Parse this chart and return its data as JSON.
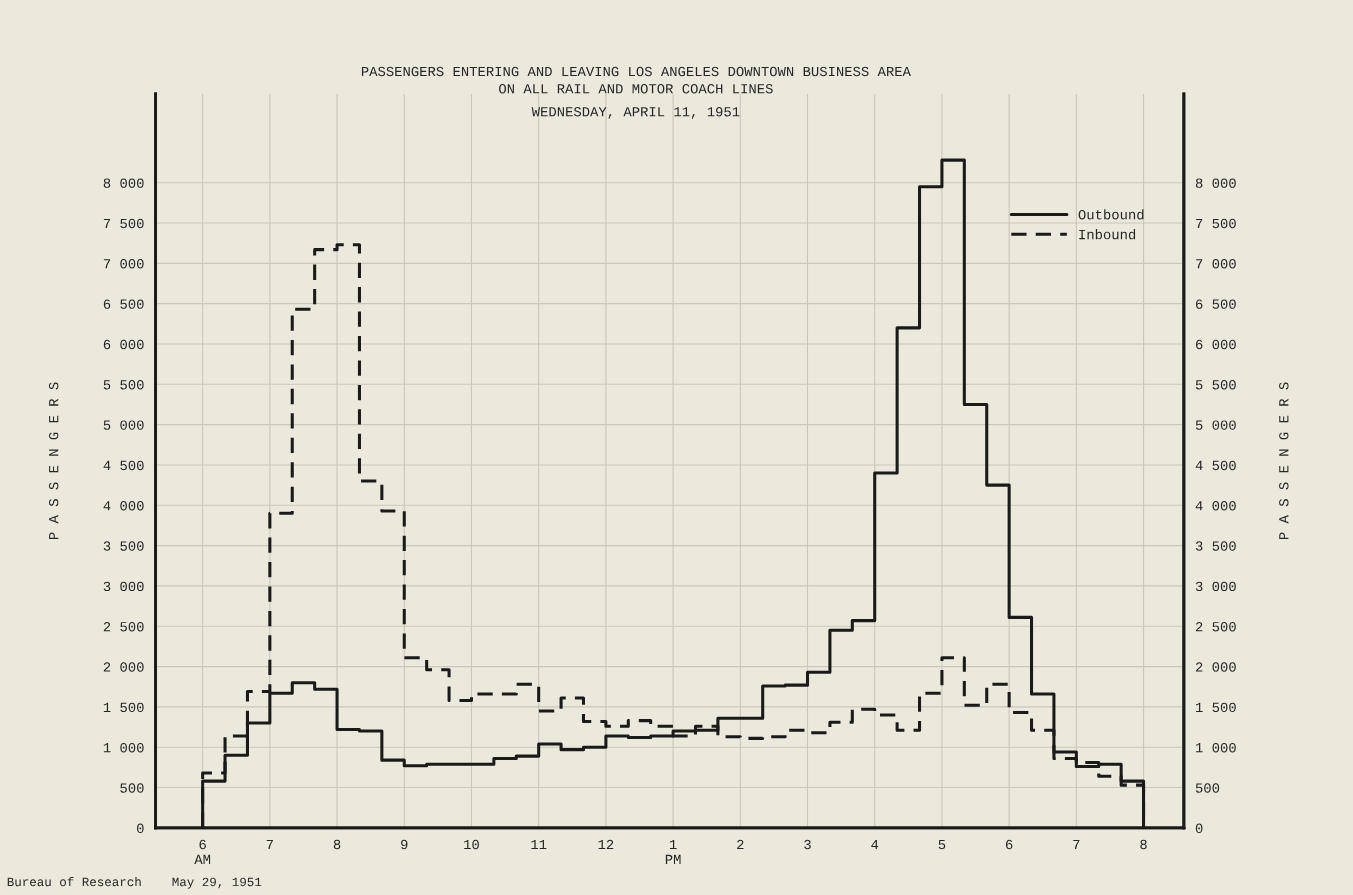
{
  "chart_data": {
    "type": "histogram",
    "title": "PASSENGERS ENTERING AND LEAVING LOS ANGELES DOWNTOWN BUSINESS AREA",
    "subtitle": "ON ALL RAIL AND MOTOR COACH LINES\nWEDNESDAY, APRIL 11, 1951",
    "ylabel": "P A S S E N G E R S",
    "y2label": "P A S S E N G E R S",
    "bins": [
      "1951-04-11T06:00",
      "1951-04-11T06:20",
      "1951-04-11T06:40",
      "1951-04-11T07:00",
      "1951-04-11T07:20",
      "1951-04-11T07:40",
      "1951-04-11T08:00",
      "1951-04-11T08:20",
      "1951-04-11T08:40",
      "1951-04-11T09:00",
      "1951-04-11T09:20",
      "1951-04-11T09:40",
      "1951-04-11T10:00",
      "1951-04-11T10:20",
      "1951-04-11T10:40",
      "1951-04-11T11:00",
      "1951-04-11T11:20",
      "1951-04-11T11:40",
      "1951-04-11T12:00",
      "1951-04-11T12:20",
      "1951-04-11T12:40",
      "1951-04-11T13:00",
      "1951-04-11T13:20",
      "1951-04-11T13:40",
      "1951-04-11T14:00",
      "1951-04-11T14:20",
      "1951-04-11T14:40",
      "1951-04-11T15:00",
      "1951-04-11T15:20",
      "1951-04-11T15:40",
      "1951-04-11T16:00",
      "1951-04-11T16:20",
      "1951-04-11T16:40",
      "1951-04-11T17:00",
      "1951-04-11T17:20",
      "1951-04-11T17:40",
      "1951-04-11T18:00",
      "1951-04-11T18:20",
      "1951-04-11T18:40",
      "1951-04-11T19:00",
      "1951-04-11T19:20",
      "1951-04-11T19:40",
      "1951-04-11T20:00"
    ],
    "series": [
      {
        "name": "Outbound",
        "color": "#1a1a1a",
        "line_style": "solid",
        "values": [
          580,
          900,
          1300,
          1670,
          1800,
          1720,
          1220,
          1200,
          840,
          770,
          790,
          790,
          790,
          860,
          890,
          1040,
          970,
          1000,
          1140,
          1120,
          1140,
          1200,
          1210,
          1360,
          1360,
          1760,
          1770,
          1930,
          2450,
          2570,
          4400,
          6200,
          7950,
          8280,
          5250,
          4250,
          2610,
          1660,
          940,
          760,
          790,
          580
        ]
      },
      {
        "name": "Inbound",
        "color": "#1a1a1a",
        "line_style": "dashed",
        "values": [
          680,
          1140,
          1690,
          3900,
          6430,
          7170,
          7230,
          4300,
          3930,
          2110,
          1960,
          1580,
          1660,
          1660,
          1780,
          1450,
          1610,
          1320,
          1260,
          1330,
          1260,
          1140,
          1260,
          1130,
          1110,
          1130,
          1210,
          1180,
          1310,
          1470,
          1400,
          1210,
          1670,
          2110,
          1520,
          1780,
          1430,
          1210,
          860,
          810,
          640,
          530
        ]
      }
    ],
    "xlim": [
      "1951-04-11T05:18",
      "1951-04-11T20:36"
    ],
    "xticks": [
      {
        "value": "1951-04-11T06:00",
        "label": "6\nAM"
      },
      {
        "value": "1951-04-11T07:00",
        "label": "7"
      },
      {
        "value": "1951-04-11T08:00",
        "label": "8"
      },
      {
        "value": "1951-04-11T09:00",
        "label": "9"
      },
      {
        "value": "1951-04-11T10:00",
        "label": "10"
      },
      {
        "value": "1951-04-11T11:00",
        "label": "11"
      },
      {
        "value": "1951-04-11T12:00",
        "label": "12"
      },
      {
        "value": "1951-04-11T13:00",
        "label": "1\nPM"
      },
      {
        "value": "1951-04-11T14:00",
        "label": "2"
      },
      {
        "value": "1951-04-11T15:00",
        "label": "3"
      },
      {
        "value": "1951-04-11T16:00",
        "label": "4"
      },
      {
        "value": "1951-04-11T17:00",
        "label": "5"
      },
      {
        "value": "1951-04-11T18:00",
        "label": "6"
      },
      {
        "value": "1951-04-11T19:00",
        "label": "7"
      },
      {
        "value": "1951-04-11T20:00",
        "label": "8"
      }
    ],
    "ylim": [
      0,
      9100
    ],
    "yticks": [
      0,
      500,
      {
        "value": 1000,
        "label": "1 000"
      },
      {
        "value": 1500,
        "label": "1 500"
      },
      {
        "value": 2000,
        "label": "2 000"
      },
      {
        "value": 2500,
        "label": "2 500"
      },
      {
        "value": 3000,
        "label": "3 000"
      },
      {
        "value": 3500,
        "label": "3 500"
      },
      {
        "value": 4000,
        "label": "4 000"
      },
      {
        "value": 4500,
        "label": "4 500"
      },
      {
        "value": 5000,
        "label": "5 000"
      },
      {
        "value": 5500,
        "label": "5 500"
      },
      {
        "value": 6000,
        "label": "6 000"
      },
      {
        "value": 6500,
        "label": "6 500"
      },
      {
        "value": 7000,
        "label": "7 000"
      },
      {
        "value": 7500,
        "label": "7 500"
      },
      {
        "value": 8000,
        "label": "8 000"
      }
    ],
    "y2lim": [
      0,
      9100
    ],
    "y2ticks": [
      0,
      500,
      {
        "value": 1000,
        "label": "1 000"
      },
      {
        "value": 1500,
        "label": "1 500"
      },
      {
        "value": 2000,
        "label": "2 000"
      },
      {
        "value": 2500,
        "label": "2 500"
      },
      {
        "value": 3000,
        "label": "3 000"
      },
      {
        "value": 3500,
        "label": "3 500"
      },
      {
        "value": 4000,
        "label": "4 000"
      },
      {
        "value": 4500,
        "label": "4 500"
      },
      {
        "value": 5000,
        "label": "5 000"
      },
      {
        "value": 5500,
        "label": "5 500"
      },
      {
        "value": 6000,
        "label": "6 000"
      },
      {
        "value": 6500,
        "label": "6 500"
      },
      {
        "value": 7000,
        "label": "7 000"
      },
      {
        "value": 7500,
        "label": "7 500"
      },
      {
        "value": 8000,
        "label": "8 000"
      }
    ],
    "grid": true,
    "legend": "top right",
    "annotations": [
      "Bureau of Research    May 29, 1951"
    ]
  }
}
